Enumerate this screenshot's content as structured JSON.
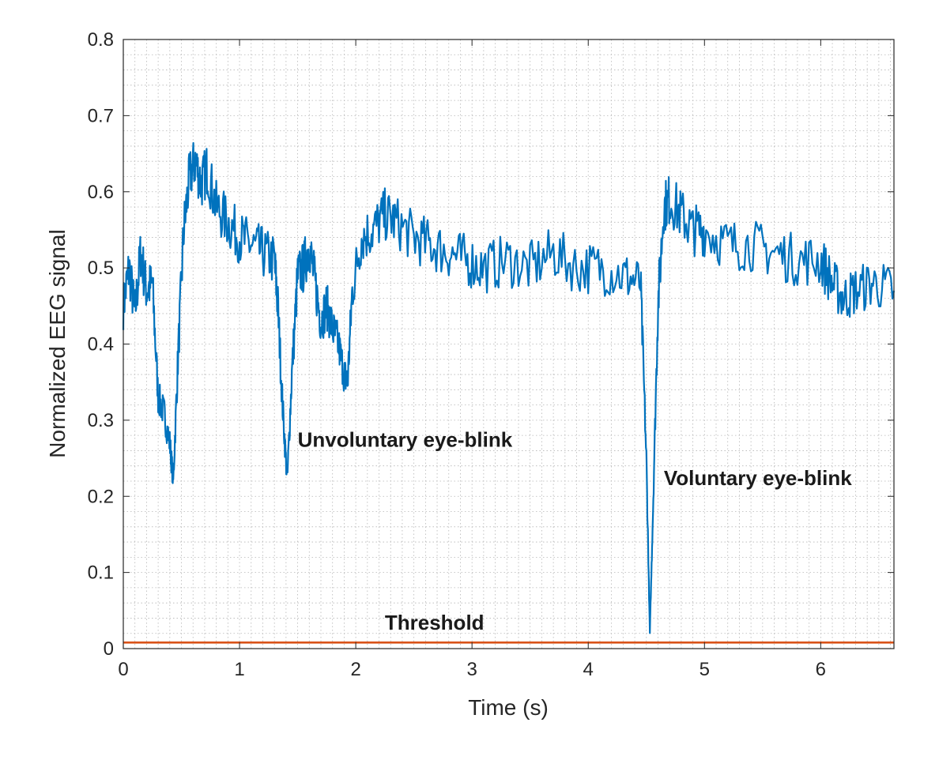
{
  "chart_data": {
    "type": "line",
    "title": "",
    "xlabel": "Time (s)",
    "ylabel": "Normalized EEG signal",
    "xlim": [
      0,
      6.63
    ],
    "ylim": [
      0,
      0.8
    ],
    "xticks": [
      0,
      1,
      2,
      3,
      4,
      5,
      6
    ],
    "xtick_labels": [
      "0",
      "1",
      "2",
      "3",
      "4",
      "5",
      "6"
    ],
    "yticks": [
      0,
      0.1,
      0.2,
      0.3,
      0.4,
      0.5,
      0.6,
      0.7,
      0.8
    ],
    "ytick_labels": [
      "0",
      "0.1",
      "0.2",
      "0.3",
      "0.4",
      "0.5",
      "0.6",
      "0.7",
      "0.8"
    ],
    "grid": "minor dotted",
    "series": [
      {
        "name": "EEG signal",
        "color": "#0072BD",
        "x": [
          0,
          0.05,
          0.1,
          0.15,
          0.2,
          0.25,
          0.3,
          0.35,
          0.4,
          0.43,
          0.47,
          0.52,
          0.57,
          0.62,
          0.67,
          0.72,
          0.8,
          0.9,
          1.0,
          1.1,
          1.2,
          1.3,
          1.33,
          1.37,
          1.41,
          1.45,
          1.5,
          1.55,
          1.6,
          1.65,
          1.7,
          1.75,
          1.8,
          1.85,
          1.9,
          1.93,
          1.97,
          2.05,
          2.15,
          2.25,
          2.35,
          2.5,
          2.65,
          2.8,
          2.95,
          3.1,
          3.3,
          3.5,
          3.7,
          3.9,
          4.1,
          4.3,
          4.45,
          4.5,
          4.53,
          4.56,
          4.6,
          4.65,
          4.7,
          4.8,
          4.9,
          5.0,
          5.2,
          5.4,
          5.6,
          5.8,
          6.0,
          6.1,
          6.2,
          6.3,
          6.45,
          6.63
        ],
        "y": [
          0.45,
          0.5,
          0.44,
          0.52,
          0.47,
          0.48,
          0.33,
          0.31,
          0.27,
          0.22,
          0.38,
          0.55,
          0.62,
          0.64,
          0.61,
          0.63,
          0.58,
          0.56,
          0.54,
          0.53,
          0.52,
          0.51,
          0.45,
          0.32,
          0.22,
          0.36,
          0.49,
          0.5,
          0.53,
          0.48,
          0.43,
          0.45,
          0.42,
          0.4,
          0.36,
          0.35,
          0.47,
          0.54,
          0.55,
          0.57,
          0.56,
          0.54,
          0.53,
          0.52,
          0.51,
          0.5,
          0.51,
          0.5,
          0.52,
          0.5,
          0.5,
          0.49,
          0.48,
          0.25,
          0.02,
          0.2,
          0.45,
          0.58,
          0.59,
          0.57,
          0.55,
          0.55,
          0.53,
          0.53,
          0.52,
          0.51,
          0.51,
          0.48,
          0.46,
          0.47,
          0.48,
          0.47
        ]
      },
      {
        "name": "Threshold",
        "color": "#D95319",
        "x": [
          0,
          6.63
        ],
        "y": [
          0.008,
          0.008
        ]
      }
    ],
    "annotations": [
      {
        "text": "Unvoluntary eye-blink",
        "x": 1.5,
        "y": 0.265
      },
      {
        "text": "Voluntary eye-blink",
        "x": 4.65,
        "y": 0.215
      },
      {
        "text": "Threshold",
        "x": 2.25,
        "y": 0.025
      }
    ]
  }
}
